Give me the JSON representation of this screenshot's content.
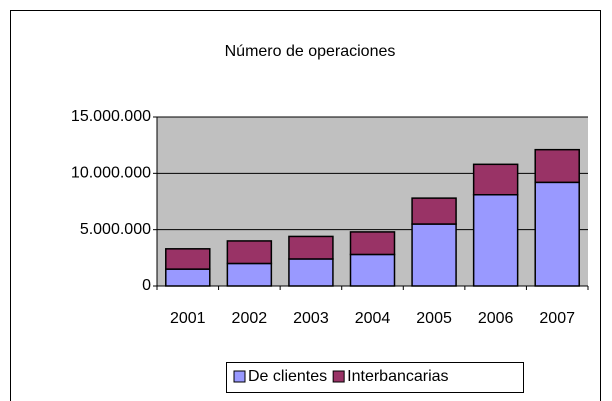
{
  "chart_data": {
    "type": "stacked_bar",
    "title": "Número  de  operaciones",
    "categories": [
      "2001",
      "2002",
      "2003",
      "2004",
      "2005",
      "2006",
      "2007"
    ],
    "series": [
      {
        "name": "De clientes",
        "color": "#9999ff",
        "values": [
          1500000,
          2000000,
          2400000,
          2800000,
          5500000,
          8100000,
          9200000
        ]
      },
      {
        "name": "Interbancarias",
        "color": "#993366",
        "values": [
          1800000,
          2000000,
          2000000,
          2000000,
          2300000,
          2700000,
          2900000
        ]
      }
    ],
    "ylim": [
      0,
      15000000
    ],
    "yticks": [
      0,
      {
        "value": 5000000,
        "label": "5.000.000"
      },
      {
        "value": 10000000,
        "label": "10.000.000"
      },
      {
        "value": 15000000,
        "label": "15.000.000"
      }
    ],
    "grid": true,
    "plot_background": "#c0c0c0",
    "legend": "bottom"
  }
}
